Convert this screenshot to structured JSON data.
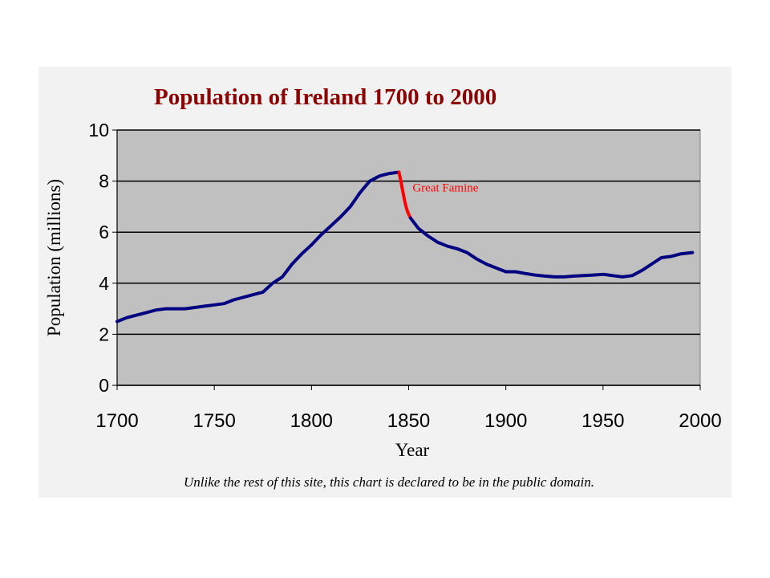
{
  "colors": {
    "plot_background": "#c0c0c0",
    "gridline": "#000000",
    "title": "#8b0000",
    "series_line": "#000080",
    "famine_line": "#ff0000"
  },
  "chart_data": {
    "type": "line",
    "title": "Population of Ireland 1700 to 2000",
    "xlabel": "Year",
    "ylabel": "Population (millions)",
    "xlim": [
      1700,
      2000
    ],
    "ylim": [
      0,
      10
    ],
    "x_ticks": [
      "1700",
      "1750",
      "1800",
      "1850",
      "1900",
      "1950",
      "2000"
    ],
    "y_ticks": [
      "0",
      "2",
      "4",
      "6",
      "8",
      "10"
    ],
    "grid": true,
    "series": [
      {
        "x": [
          1700,
          1705,
          1710,
          1715,
          1720,
          1725,
          1730,
          1735,
          1740,
          1745,
          1750,
          1755,
          1760,
          1765,
          1770,
          1775,
          1780,
          1785,
          1790,
          1795,
          1800,
          1805,
          1810,
          1815,
          1820,
          1825,
          1830,
          1835,
          1840,
          1845
        ],
        "y": [
          2.5,
          2.65,
          2.75,
          2.85,
          2.95,
          3.0,
          3.0,
          3.0,
          3.05,
          3.1,
          3.15,
          3.2,
          3.35,
          3.45,
          3.55,
          3.65,
          4.0,
          4.25,
          4.75,
          5.15,
          5.5,
          5.9,
          6.25,
          6.6,
          7.0,
          7.55,
          8.0,
          8.2,
          8.3,
          8.35
        ]
      },
      {
        "x": [
          1845,
          1846,
          1847,
          1848,
          1849,
          1850,
          1851
        ],
        "y": [
          8.35,
          8.0,
          7.6,
          7.2,
          6.9,
          6.7,
          6.55
        ]
      },
      {
        "x": [
          1851,
          1855,
          1860,
          1865,
          1870,
          1875,
          1880,
          1885,
          1890,
          1895,
          1900,
          1905,
          1910,
          1915,
          1920,
          1925,
          1930,
          1935,
          1940,
          1945,
          1950,
          1955,
          1960,
          1965,
          1970,
          1975,
          1980,
          1985,
          1990,
          1996
        ],
        "y": [
          6.55,
          6.15,
          5.85,
          5.6,
          5.45,
          5.35,
          5.2,
          4.95,
          4.75,
          4.6,
          4.45,
          4.45,
          4.38,
          4.32,
          4.28,
          4.25,
          4.25,
          4.28,
          4.3,
          4.32,
          4.35,
          4.3,
          4.25,
          4.3,
          4.5,
          4.75,
          5.0,
          5.05,
          5.15,
          5.2
        ]
      }
    ],
    "annotations": [
      {
        "text": "Great Famine",
        "x": 1852,
        "y": 7.6
      }
    ],
    "caption": "Unlike the rest of this site, this chart is declared to be in the public domain."
  }
}
